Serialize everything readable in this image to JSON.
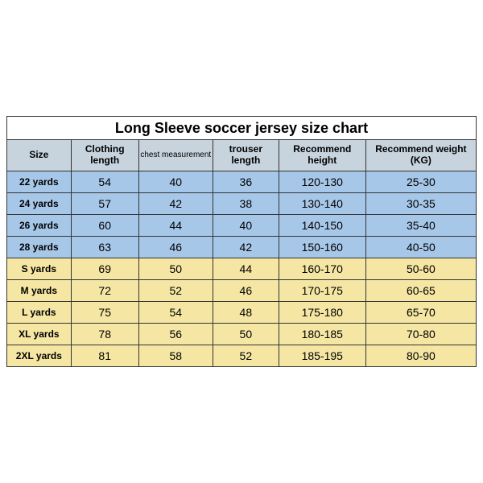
{
  "title": "Long Sleeve soccer jersey size chart",
  "columns": [
    {
      "label": "Size",
      "class": "col-0",
      "small": false
    },
    {
      "label": "Clothing length",
      "class": "col-1",
      "small": false
    },
    {
      "label": "chest measurement",
      "class": "col-2",
      "small": true
    },
    {
      "label": "trouser length",
      "class": "col-3",
      "small": false
    },
    {
      "label": "Recommend height",
      "class": "col-4",
      "small": false
    },
    {
      "label": "Recommend weight (KG)",
      "class": "col-5",
      "small": false
    }
  ],
  "rows": [
    {
      "color": "blue",
      "cells": [
        "22 yards",
        "54",
        "40",
        "36",
        "120-130",
        "25-30"
      ]
    },
    {
      "color": "blue",
      "cells": [
        "24 yards",
        "57",
        "42",
        "38",
        "130-140",
        "30-35"
      ]
    },
    {
      "color": "blue",
      "cells": [
        "26 yards",
        "60",
        "44",
        "40",
        "140-150",
        "35-40"
      ]
    },
    {
      "color": "blue",
      "cells": [
        "28 yards",
        "63",
        "46",
        "42",
        "150-160",
        "40-50"
      ]
    },
    {
      "color": "yellow",
      "cells": [
        "S yards",
        "69",
        "50",
        "44",
        "160-170",
        "50-60"
      ]
    },
    {
      "color": "yellow",
      "cells": [
        "M yards",
        "72",
        "52",
        "46",
        "170-175",
        "60-65"
      ]
    },
    {
      "color": "yellow",
      "cells": [
        "L yards",
        "75",
        "54",
        "48",
        "175-180",
        "65-70"
      ]
    },
    {
      "color": "yellow",
      "cells": [
        "XL yards",
        "78",
        "56",
        "50",
        "180-185",
        "70-80"
      ]
    },
    {
      "color": "yellow",
      "cells": [
        "2XL yards",
        "81",
        "58",
        "52",
        "185-195",
        "80-90"
      ]
    }
  ],
  "colors": {
    "header_bg": "#c7d3dd",
    "row_blue": "#a7c7e8",
    "row_yellow": "#f5e6a3",
    "border": "#333333",
    "background": "#ffffff"
  }
}
